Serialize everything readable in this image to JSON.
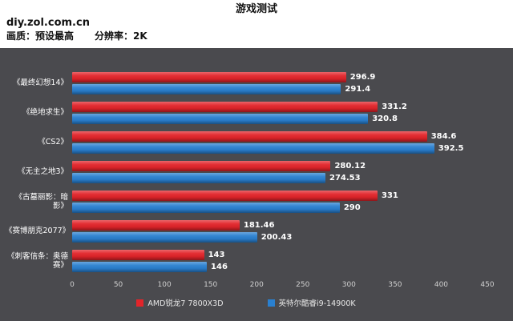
{
  "header": {
    "title": "游戏测试",
    "site": "diy.zol.com.cn",
    "settings_quality": "画质：预设最高",
    "settings_resolution": "分辨率：2K"
  },
  "chart_data": {
    "type": "bar",
    "orientation": "horizontal",
    "title": "游戏测试",
    "categories": [
      "《最终幻想14》",
      "《绝地求生》",
      "《CS2》",
      "《无主之地3》",
      "《古墓丽影：暗影》",
      "《赛博朋克2077》",
      "《刺客信条：奥德赛》"
    ],
    "series": [
      {
        "name": "AMD锐龙7 7800X3D",
        "color": "#e2242a",
        "values": [
          296.9,
          331.2,
          384.6,
          280.12,
          331,
          181.46,
          143
        ]
      },
      {
        "name": "英特尔酷睿i9-14900K",
        "color": "#2a80d0",
        "values": [
          291.4,
          320.8,
          392.5,
          274.53,
          290,
          200.43,
          146
        ]
      }
    ],
    "xlabel": "",
    "ylabel": "",
    "xlim": [
      0,
      450
    ],
    "xticks": [
      0,
      50,
      100,
      150,
      200,
      250,
      300,
      350,
      400,
      450
    ],
    "grid": false,
    "legend_position": "bottom",
    "value_labels": true
  }
}
